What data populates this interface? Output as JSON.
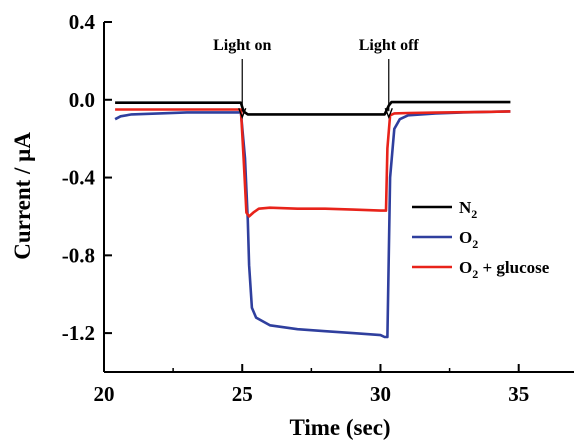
{
  "chart_data": {
    "type": "line",
    "title": "",
    "xlabel": "Time (sec)",
    "ylabel": "Current / μA",
    "xlim": [
      20,
      37
    ],
    "ylim": [
      -1.4,
      0.4
    ],
    "xticks": [
      20,
      25,
      30,
      35
    ],
    "xtick_labels": [
      "20",
      "25",
      "30",
      "35"
    ],
    "yticks": [
      0.4,
      0.0,
      -0.4,
      -0.8,
      -1.2
    ],
    "ytick_labels": [
      "0.4",
      "0.0",
      "-0.4",
      "-0.8",
      "-1.2"
    ],
    "grid": false,
    "legend_position": "right",
    "annotations": [
      {
        "text": "Light on",
        "x": 25.0,
        "arrow_from": -0.02,
        "arrow_to": -0.1
      },
      {
        "text": "Light off",
        "x": 30.3,
        "arrow_from": -0.02,
        "arrow_to": -0.1
      }
    ],
    "series": [
      {
        "name": "N2",
        "legend_base": "N",
        "legend_sub": "2",
        "legend_suffix": "",
        "color": "#000000",
        "x": [
          20.4,
          22,
          24,
          24.95,
          25.05,
          25.2,
          26,
          27,
          28,
          29,
          30.15,
          30.3,
          30.4,
          31,
          32,
          33,
          34,
          34.7
        ],
        "y": [
          -0.015,
          -0.015,
          -0.015,
          -0.015,
          -0.06,
          -0.075,
          -0.075,
          -0.075,
          -0.075,
          -0.075,
          -0.075,
          -0.03,
          -0.012,
          -0.012,
          -0.012,
          -0.012,
          -0.012,
          -0.012
        ]
      },
      {
        "name": "O2",
        "legend_base": "O",
        "legend_sub": "2",
        "legend_suffix": "",
        "color": "#2f3f9e",
        "x": [
          20.4,
          20.6,
          21,
          22,
          23,
          24,
          24.95,
          25.1,
          25.2,
          25.25,
          25.35,
          25.5,
          26,
          27,
          28,
          29,
          30.0,
          30.15,
          30.25,
          30.35,
          30.5,
          30.7,
          31,
          32,
          33,
          34,
          34.7
        ],
        "y": [
          -0.1,
          -0.085,
          -0.075,
          -0.07,
          -0.065,
          -0.065,
          -0.065,
          -0.3,
          -0.62,
          -0.85,
          -1.07,
          -1.12,
          -1.16,
          -1.18,
          -1.19,
          -1.2,
          -1.21,
          -1.22,
          -1.22,
          -0.4,
          -0.15,
          -0.1,
          -0.08,
          -0.07,
          -0.065,
          -0.062,
          -0.06
        ]
      },
      {
        "name": "O2 + glucose",
        "legend_base": "O",
        "legend_sub": "2",
        "legend_suffix": " + glucose",
        "color": "#e8231a",
        "x": [
          20.4,
          21,
          22,
          23,
          24,
          24.95,
          25.05,
          25.15,
          25.25,
          25.4,
          25.6,
          26,
          27,
          28,
          29,
          30.0,
          30.2,
          30.25,
          30.35,
          30.5,
          31,
          32,
          33,
          34,
          34.7
        ],
        "y": [
          -0.05,
          -0.05,
          -0.05,
          -0.05,
          -0.05,
          -0.05,
          -0.3,
          -0.58,
          -0.6,
          -0.58,
          -0.56,
          -0.555,
          -0.56,
          -0.56,
          -0.565,
          -0.57,
          -0.57,
          -0.25,
          -0.08,
          -0.07,
          -0.068,
          -0.066,
          -0.064,
          -0.062,
          -0.06
        ]
      }
    ]
  }
}
